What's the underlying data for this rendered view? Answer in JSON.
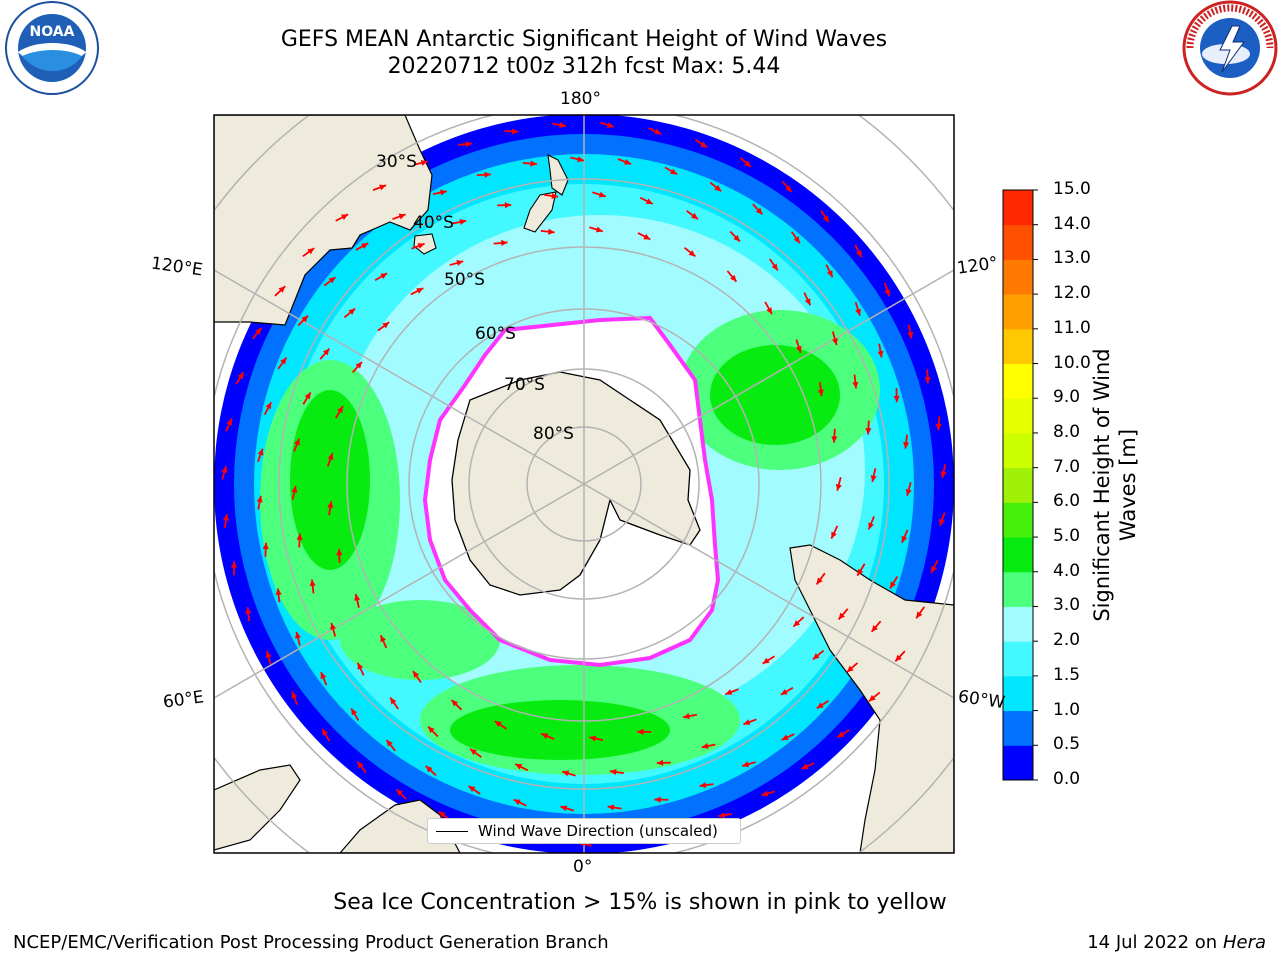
{
  "title": {
    "line1": "GEFS MEAN Antarctic Significant Height of Wind Waves",
    "line2": "20220712 t00z 312h fcst   Max: 5.44"
  },
  "logos": {
    "left": "noaa-logo",
    "right": "nws-logo",
    "noaa_text": "NOAA",
    "nws_text": "NATIONAL WEATHER SERVICE"
  },
  "map": {
    "projection": "south-polar-stereographic",
    "longitude_labels": {
      "top": "180°",
      "bottom": "0°",
      "left_upper": "120°E",
      "left_lower": "60°E",
      "right_upper": "120°",
      "right_lower": "60°W"
    },
    "latitude_labels": [
      "30°S",
      "40°S",
      "50°S",
      "60°S",
      "70°S",
      "80°S"
    ],
    "land_color": "#efebdc",
    "ocean_mask_color": "#ffffff"
  },
  "colorbar": {
    "label": "Significant Height of Wind Waves [m]",
    "ticks": [
      "0.0",
      "0.5",
      "1.0",
      "1.5",
      "2.0",
      "3.0",
      "4.0",
      "5.0",
      "6.0",
      "7.0",
      "8.0",
      "9.0",
      "10.0",
      "11.0",
      "12.0",
      "13.0",
      "14.0",
      "15.0"
    ],
    "colors": [
      "#0000ff",
      "#0072ff",
      "#00e6ff",
      "#44f8ff",
      "#a2fbff",
      "#4cff7c",
      "#08eb10",
      "#46f00a",
      "#a0f008",
      "#ccff00",
      "#e6ff00",
      "#ffff00",
      "#ffc800",
      "#ffa000",
      "#ff7a00",
      "#ff5000",
      "#ff2800"
    ]
  },
  "legend": {
    "label": "Wind Wave Direction (unscaled)"
  },
  "note": "Sea Ice Concentration > 15% is shown in pink to yellow",
  "footer": {
    "left": "NCEP/EMC/Verification Post Processing Product Generation Branch",
    "date": "14 Jul 2022",
    "on": "on",
    "host": "Hera"
  }
}
